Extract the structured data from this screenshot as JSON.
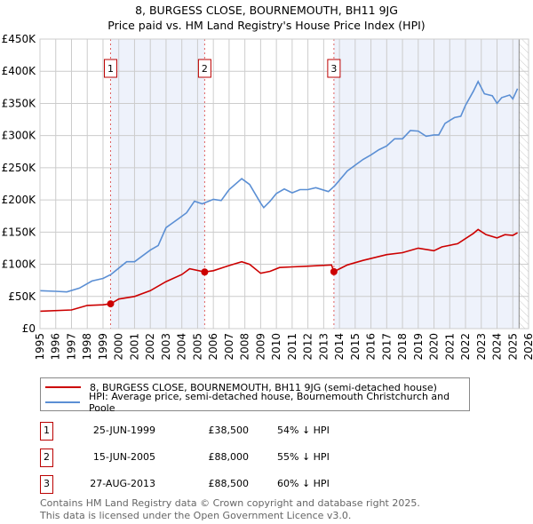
{
  "chart_data": {
    "type": "line",
    "title": "8, BURGESS CLOSE, BOURNEMOUTH, BH11 9JG",
    "subtitle": "Price paid vs. HM Land Registry's House Price Index (HPI)",
    "xlim": [
      1995,
      2026
    ],
    "ylim": [
      0,
      450000
    ],
    "yticks": [
      0,
      50000,
      100000,
      150000,
      200000,
      250000,
      300000,
      350000,
      400000,
      450000
    ],
    "ytick_labels": [
      "£0",
      "£50K",
      "£100K",
      "£150K",
      "£200K",
      "£250K",
      "£300K",
      "£350K",
      "£400K",
      "£450K"
    ],
    "xticks": [
      1995,
      1996,
      1997,
      1998,
      1999,
      2000,
      2001,
      2002,
      2003,
      2004,
      2005,
      2006,
      2007,
      2008,
      2009,
      2010,
      2011,
      2012,
      2013,
      2014,
      2015,
      2016,
      2017,
      2018,
      2019,
      2020,
      2021,
      2022,
      2023,
      2024,
      2025,
      2026
    ],
    "grid": true,
    "shaded_ranges": [
      [
        1999.48,
        2005.45
      ],
      [
        2013.65,
        2025.4
      ]
    ],
    "future_hatch_from": 2025.4,
    "series": [
      {
        "name": "8, BURGESS CLOSE, BOURNEMOUTH, BH11 9JG (semi-detached house)",
        "color": "#cc0000",
        "x": [
          1995,
          1997,
          1998,
          1999,
          1999.48,
          2000,
          2001,
          2002,
          2003,
          2004,
          2004.5,
          2005.45,
          2006,
          2007,
          2007.8,
          2008.3,
          2009,
          2009.6,
          2010.2,
          2011,
          2012,
          2013.5,
          2013.65,
          2014.5,
          2015.5,
          2017,
          2018,
          2019,
          2020,
          2020.5,
          2021.5,
          2022.5,
          2022.8,
          2023.3,
          2024,
          2024.5,
          2025,
          2025.3
        ],
        "y": [
          27000,
          29000,
          36000,
          37000,
          38500,
          46000,
          50000,
          59000,
          73000,
          84000,
          93000,
          88000,
          90000,
          98000,
          104000,
          100000,
          86000,
          89000,
          95000,
          96000,
          97000,
          99000,
          88500,
          99000,
          106000,
          115000,
          118000,
          125000,
          121000,
          127000,
          132000,
          148000,
          154000,
          146000,
          141000,
          146000,
          145000,
          149000
        ]
      },
      {
        "name": "HPI: Average price, semi-detached house, Bournemouth Christchurch and Poole",
        "color": "#5b8fd4",
        "x": [
          1995,
          1996,
          1996.7,
          1997.5,
          1998.3,
          1999,
          1999.5,
          2000.5,
          2001,
          2002,
          2002.5,
          2003,
          2003.8,
          2004.3,
          2004.8,
          2005.3,
          2006,
          2006.5,
          2007,
          2007.8,
          2008.3,
          2009,
          2009.2,
          2009.6,
          2010,
          2010.5,
          2011,
          2011.5,
          2012,
          2012.5,
          2013.3,
          2013.7,
          2014.5,
          2015,
          2015.5,
          2016,
          2016.5,
          2017,
          2017.5,
          2018,
          2018.5,
          2019,
          2019.5,
          2020,
          2020.3,
          2020.7,
          2021.3,
          2021.7,
          2022,
          2022.5,
          2022.8,
          2023.2,
          2023.7,
          2024,
          2024.3,
          2024.8,
          2025,
          2025.3
        ],
        "y": [
          59000,
          58000,
          57000,
          63000,
          74000,
          78000,
          84000,
          104000,
          104000,
          122000,
          129000,
          157000,
          171000,
          180000,
          198000,
          194000,
          201000,
          199000,
          216000,
          233000,
          224000,
          195000,
          188000,
          198000,
          210000,
          217000,
          211000,
          216000,
          216000,
          219000,
          213000,
          222000,
          245000,
          254000,
          263000,
          270000,
          278000,
          284000,
          295000,
          295000,
          308000,
          307000,
          299000,
          301000,
          301000,
          319000,
          328000,
          330000,
          347000,
          369000,
          384000,
          365000,
          362000,
          350000,
          359000,
          363000,
          357000,
          373000
        ]
      }
    ],
    "sales": [
      {
        "label": "1",
        "x": 1999.48,
        "y": 38500
      },
      {
        "label": "2",
        "x": 2005.45,
        "y": 88000
      },
      {
        "label": "3",
        "x": 2013.65,
        "y": 88500
      }
    ]
  },
  "legend": {
    "property": "8, BURGESS CLOSE, BOURNEMOUTH, BH11 9JG (semi-detached house)",
    "hpi": "HPI: Average price, semi-detached house, Bournemouth Christchurch and Poole"
  },
  "transactions": [
    {
      "num": "1",
      "date": "25-JUN-1999",
      "price": "£38,500",
      "hpi": "54% ↓ HPI"
    },
    {
      "num": "2",
      "date": "15-JUN-2005",
      "price": "£88,000",
      "hpi": "55% ↓ HPI"
    },
    {
      "num": "3",
      "date": "27-AUG-2013",
      "price": "£88,500",
      "hpi": "60% ↓ HPI"
    }
  ],
  "footer": {
    "line1": "Contains HM Land Registry data © Crown copyright and database right 2025.",
    "line2": "This data is licensed under the Open Government Licence v3.0."
  }
}
